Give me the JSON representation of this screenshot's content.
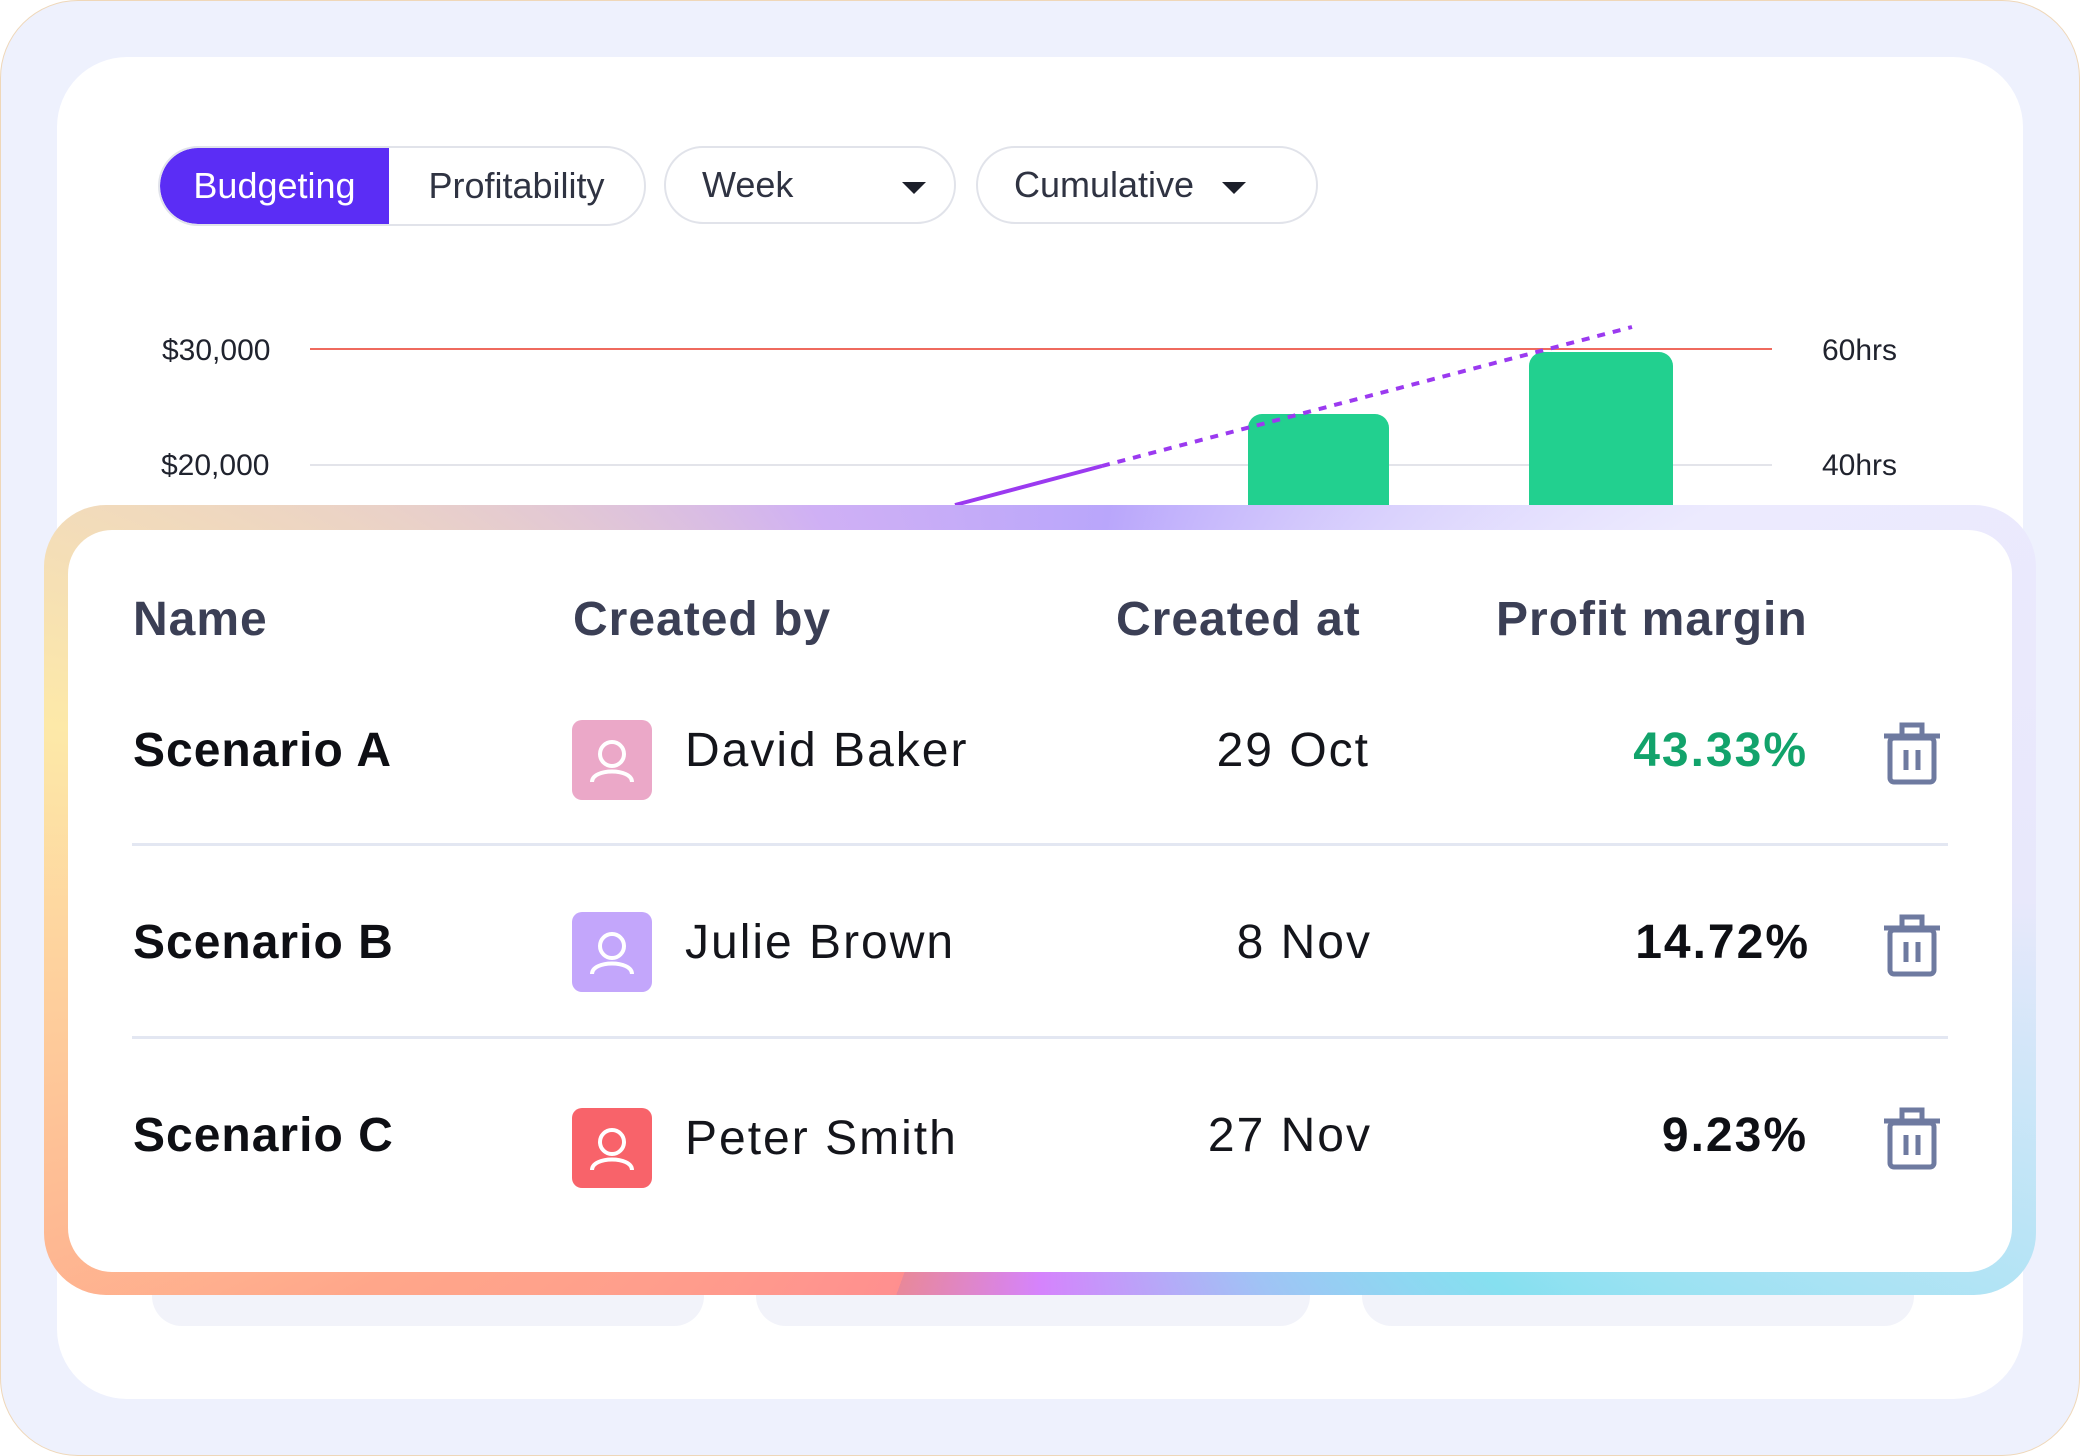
{
  "toolbar": {
    "tabs": [
      {
        "label": "Budgeting",
        "active": true
      },
      {
        "label": "Profitability",
        "active": false
      }
    ],
    "period_select": {
      "value": "Week"
    },
    "mode_select": {
      "value": "Cumulative"
    }
  },
  "chart_data": {
    "type": "bar",
    "left_axis_ticks": [
      "$30,000",
      "$20,000"
    ],
    "right_axis_ticks": [
      "60hrs",
      "40hrs"
    ],
    "bar_values_dollars": [
      24500,
      29700
    ],
    "target_line_dollars": 30000,
    "trend_line": "dashed, rising above target",
    "colors": {
      "bars": "#22d08f",
      "target": "#ef6a5e",
      "trend": "#9b3af0",
      "grid": "#e3e4ea"
    }
  },
  "table": {
    "columns": [
      "Name",
      "Created by",
      "Created at",
      "Profit margin"
    ],
    "rows": [
      {
        "name": "Scenario A",
        "creator": "David Baker",
        "created_at": "29 Oct",
        "margin": "43.33%",
        "avatar_color": "#eba8c8",
        "margin_color": "#12a36b"
      },
      {
        "name": "Scenario B",
        "creator": "Julie Brown",
        "created_at": "8 Nov",
        "margin": "14.72%",
        "avatar_color": "#c3a6fb",
        "margin_color": "#0e0f14"
      },
      {
        "name": "Scenario C",
        "creator": "Peter Smith",
        "created_at": "27 Nov",
        "margin": "9.23%",
        "avatar_color": "#f8636a",
        "margin_color": "#0e0f14"
      }
    ]
  },
  "icons": {
    "avatar": "user-icon",
    "delete": "trash-icon",
    "dropdown": "caret-down-icon"
  },
  "colors": {
    "accent": "#5b2df5",
    "background": "#eef1fd"
  }
}
